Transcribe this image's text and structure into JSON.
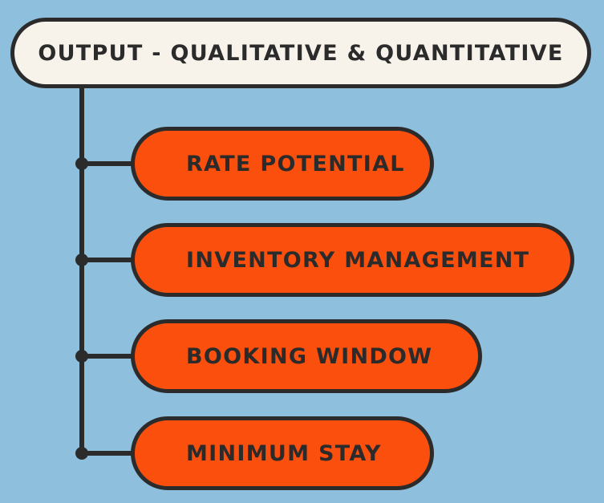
{
  "diagram": {
    "title": "OUTPUT - QUALITATIVE & QUANTITATIVE",
    "items": [
      {
        "label": "RATE POTENTIAL"
      },
      {
        "label": "INVENTORY MANAGEMENT"
      },
      {
        "label": "BOOKING WINDOW"
      },
      {
        "label": "MINIMUM STAY"
      }
    ]
  },
  "colors": {
    "background": "#8ec0de",
    "title_fill": "#f7f3ea",
    "item_fill": "#fb4f0d",
    "stroke": "#2b2b2b"
  }
}
